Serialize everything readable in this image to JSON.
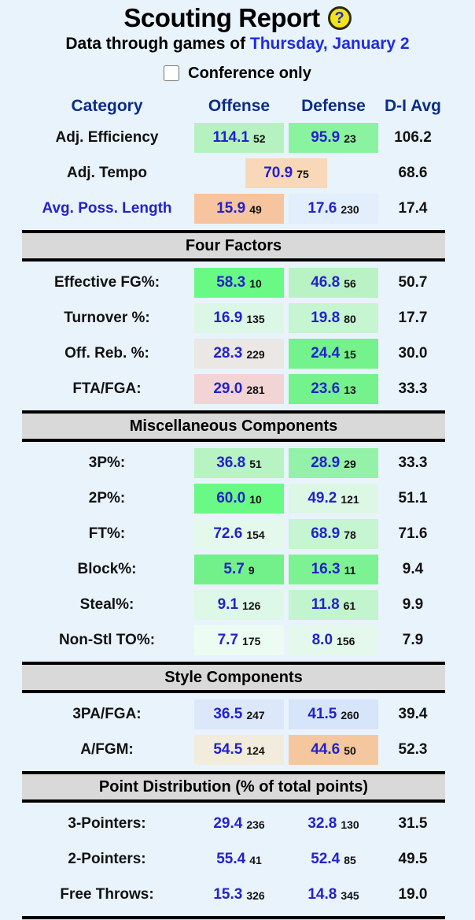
{
  "colors": {
    "page_bg": "#e9f3fc",
    "header_navy": "#0a2d87",
    "value_blue": "#2222cc",
    "section_bar_gray": "#d9d9d9",
    "good_rank_green": "#6cf989",
    "bad_rank_pink": "#f3d4d4",
    "style_blue": "#dbe7fa",
    "style_orange": "#f5c79e"
  },
  "header": {
    "title": "Scouting Report",
    "help_icon_glyph": "?",
    "subtitle_prefix": "Data through games of ",
    "date_link": "Thursday, January 2",
    "checkbox_label": "Conference only",
    "checkbox_checked": false
  },
  "table": {
    "columns": [
      "Category",
      "Offense",
      "Defense",
      "D-I Avg"
    ],
    "sections": [
      {
        "header": null,
        "rows": [
          {
            "label": "Adj. Efficiency",
            "label_link": false,
            "offense": {
              "value": "114.1",
              "rank": "52",
              "bg": "#b5f2c0"
            },
            "defense": {
              "value": "95.9",
              "rank": "23",
              "bg": "#8af3a0"
            },
            "avg": "106.2"
          },
          {
            "label": "Adj. Tempo",
            "label_link": false,
            "merged": {
              "value": "70.9",
              "rank": "75",
              "bg": "#f8d8b8"
            },
            "avg": "68.6"
          },
          {
            "label": "Avg. Poss. Length",
            "label_link": true,
            "offense": {
              "value": "15.9",
              "rank": "49",
              "bg": "#f6c49e"
            },
            "defense": {
              "value": "17.6",
              "rank": "230",
              "bg": "#e2eefb"
            },
            "avg": "17.4"
          }
        ]
      },
      {
        "header": "Four Factors",
        "rows": [
          {
            "label": "Effective FG%:",
            "label_link": false,
            "offense": {
              "value": "58.3",
              "rank": "10",
              "bg": "#69fa85"
            },
            "defense": {
              "value": "46.8",
              "rank": "56",
              "bg": "#b9f3c5"
            },
            "avg": "50.7"
          },
          {
            "label": "Turnover %:",
            "label_link": false,
            "offense": {
              "value": "16.9",
              "rank": "135",
              "bg": "#ddf7e6"
            },
            "defense": {
              "value": "19.8",
              "rank": "80",
              "bg": "#c6f5d1"
            },
            "avg": "17.7"
          },
          {
            "label": "Off. Reb. %:",
            "label_link": false,
            "offense": {
              "value": "28.3",
              "rank": "229",
              "bg": "#eae7e4"
            },
            "defense": {
              "value": "24.4",
              "rank": "15",
              "bg": "#74f28b"
            },
            "avg": "30.0"
          },
          {
            "label": "FTA/FGA:",
            "label_link": false,
            "offense": {
              "value": "29.0",
              "rank": "281",
              "bg": "#f3d4d4"
            },
            "defense": {
              "value": "23.6",
              "rank": "13",
              "bg": "#74f28b"
            },
            "avg": "33.3"
          }
        ]
      },
      {
        "header": "Miscellaneous Components",
        "rows": [
          {
            "label": "3P%:",
            "label_link": false,
            "offense": {
              "value": "36.8",
              "rank": "51",
              "bg": "#b7f3c3"
            },
            "defense": {
              "value": "28.9",
              "rank": "29",
              "bg": "#93f1a8"
            },
            "avg": "33.3"
          },
          {
            "label": "2P%:",
            "label_link": false,
            "offense": {
              "value": "60.0",
              "rank": "10",
              "bg": "#69fa85"
            },
            "defense": {
              "value": "49.2",
              "rank": "121",
              "bg": "#dcf8e5"
            },
            "avg": "51.1"
          },
          {
            "label": "FT%:",
            "label_link": false,
            "offense": {
              "value": "72.6",
              "rank": "154",
              "bg": "#e4f9ec"
            },
            "defense": {
              "value": "68.9",
              "rank": "78",
              "bg": "#c6f5d1"
            },
            "avg": "71.6"
          },
          {
            "label": "Block%:",
            "label_link": false,
            "offense": {
              "value": "5.7",
              "rank": "9",
              "bg": "#72f18a"
            },
            "defense": {
              "value": "16.3",
              "rank": "11",
              "bg": "#7df293"
            },
            "avg": "9.4"
          },
          {
            "label": "Steal%:",
            "label_link": false,
            "offense": {
              "value": "9.1",
              "rank": "126",
              "bg": "#def8e7"
            },
            "defense": {
              "value": "11.8",
              "rank": "61",
              "bg": "#c2f4ce"
            },
            "avg": "9.9"
          },
          {
            "label": "Non-Stl TO%:",
            "label_link": false,
            "offense": {
              "value": "7.7",
              "rank": "175",
              "bg": "#ecfcf2"
            },
            "defense": {
              "value": "8.0",
              "rank": "156",
              "bg": "#e4f9ec"
            },
            "avg": "7.9"
          }
        ]
      },
      {
        "header": "Style Components",
        "rows": [
          {
            "label": "3PA/FGA:",
            "label_link": false,
            "offense": {
              "value": "36.5",
              "rank": "247",
              "bg": "#dce8fa"
            },
            "defense": {
              "value": "41.5",
              "rank": "260",
              "bg": "#d7e5fa"
            },
            "avg": "39.4"
          },
          {
            "label": "A/FGM:",
            "label_link": false,
            "offense": {
              "value": "54.5",
              "rank": "124",
              "bg": "#f1ecdc"
            },
            "defense": {
              "value": "44.6",
              "rank": "50",
              "bg": "#f5c79e"
            },
            "avg": "52.3"
          }
        ]
      },
      {
        "header": "Point Distribution (% of total points)",
        "rows": [
          {
            "label": "3-Pointers:",
            "label_link": false,
            "offense": {
              "value": "29.4",
              "rank": "236",
              "bg": null
            },
            "defense": {
              "value": "32.8",
              "rank": "130",
              "bg": null
            },
            "avg": "31.5"
          },
          {
            "label": "2-Pointers:",
            "label_link": false,
            "offense": {
              "value": "55.4",
              "rank": "41",
              "bg": null
            },
            "defense": {
              "value": "52.4",
              "rank": "85",
              "bg": null
            },
            "avg": "49.5"
          },
          {
            "label": "Free Throws:",
            "label_link": false,
            "offense": {
              "value": "15.3",
              "rank": "326",
              "bg": null
            },
            "defense": {
              "value": "14.8",
              "rank": "345",
              "bg": null
            },
            "avg": "19.0"
          }
        ]
      }
    ]
  }
}
